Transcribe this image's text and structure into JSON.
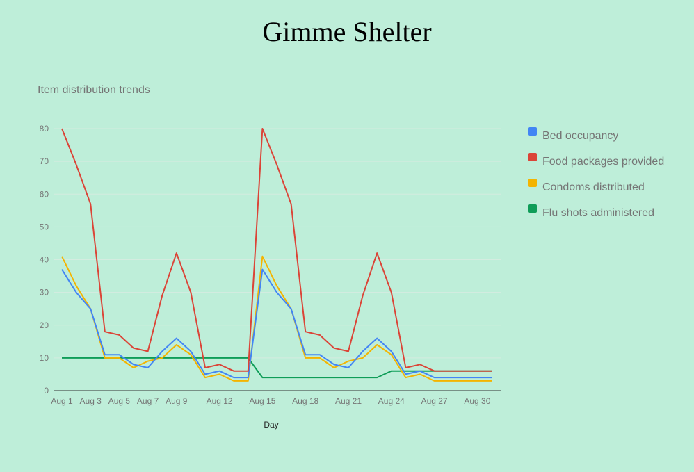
{
  "page": {
    "title": "Gimme Shelter"
  },
  "chart_data": {
    "type": "line",
    "title": "Item distribution trends",
    "xlabel": "Day",
    "ylabel": "",
    "ylim": [
      0,
      80
    ],
    "yticks": [
      0,
      10,
      20,
      30,
      40,
      50,
      60,
      70,
      80
    ],
    "grid": true,
    "legend": "right",
    "x": [
      "Aug 1",
      "Aug 2",
      "Aug 3",
      "Aug 4",
      "Aug 5",
      "Aug 6",
      "Aug 7",
      "Aug 8",
      "Aug 9",
      "Aug 10",
      "Aug 11",
      "Aug 12",
      "Aug 13",
      "Aug 14",
      "Aug 15",
      "Aug 16",
      "Aug 17",
      "Aug 18",
      "Aug 19",
      "Aug 20",
      "Aug 21",
      "Aug 22",
      "Aug 23",
      "Aug 24",
      "Aug 25",
      "Aug 26",
      "Aug 27",
      "Aug 28",
      "Aug 29",
      "Aug 30",
      "Aug 31"
    ],
    "xticks": [
      "Aug 1",
      "Aug 3",
      "Aug 5",
      "Aug 7",
      "Aug 9",
      "Aug 12",
      "Aug 15",
      "Aug 18",
      "Aug 21",
      "Aug 24",
      "Aug 27",
      "Aug 30"
    ],
    "series": [
      {
        "name": "Bed occupancy",
        "color": "#4285f4",
        "values": [
          37,
          30,
          25,
          11,
          11,
          8,
          7,
          12,
          16,
          12,
          5,
          6,
          4,
          4,
          37,
          30,
          25,
          11,
          11,
          8,
          7,
          12,
          16,
          12,
          5,
          6,
          4,
          4,
          4,
          4,
          4
        ]
      },
      {
        "name": "Food packages provided",
        "color": "#db4437",
        "values": [
          80,
          69,
          57,
          18,
          17,
          13,
          12,
          29,
          42,
          30,
          7,
          8,
          6,
          6,
          80,
          69,
          57,
          18,
          17,
          13,
          12,
          29,
          42,
          30,
          7,
          8,
          6,
          6,
          6,
          6,
          6
        ]
      },
      {
        "name": "Condoms distributed",
        "color": "#f4b400",
        "values": [
          41,
          32,
          25,
          10,
          10,
          7,
          9,
          10,
          14,
          11,
          4,
          5,
          3,
          3,
          41,
          32,
          25,
          10,
          10,
          7,
          9,
          10,
          14,
          11,
          4,
          5,
          3,
          3,
          3,
          3,
          3
        ]
      },
      {
        "name": "Flu shots administered",
        "color": "#0f9d58",
        "values": [
          10,
          10,
          10,
          10,
          10,
          10,
          10,
          10,
          10,
          10,
          10,
          10,
          10,
          10,
          4,
          4,
          4,
          4,
          4,
          4,
          4,
          4,
          4,
          6,
          6,
          6,
          6,
          6,
          6,
          6,
          6
        ]
      }
    ]
  }
}
